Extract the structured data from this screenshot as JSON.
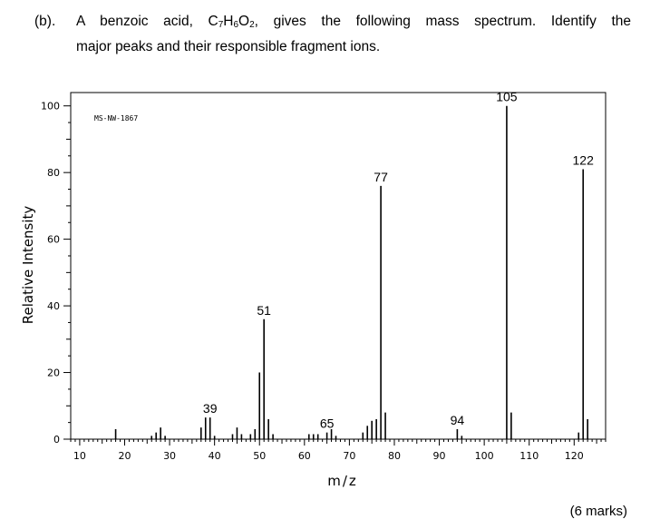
{
  "question": {
    "number": "(b).",
    "line1_prefix": "A benzoic acid, C",
    "sub1": "7",
    "h": "H",
    "sub2": "6",
    "o": "O",
    "sub3": "2",
    "line1_suffix": ", gives the following mass spectrum. Identify the",
    "line2": "major peaks and their responsible fragment ions."
  },
  "marks": "(6  marks)",
  "chart_data": {
    "type": "bar",
    "annotation": "MS-NW-1867",
    "xlabel": "m/z",
    "ylabel": "Relative Intensity",
    "xlim": [
      8,
      127
    ],
    "ylim": [
      0,
      104
    ],
    "x_ticks": [
      10,
      20,
      30,
      40,
      50,
      60,
      70,
      80,
      90,
      100,
      110,
      120
    ],
    "y_ticks": [
      0,
      20,
      40,
      60,
      80,
      100
    ],
    "peaks": [
      {
        "mz": 18,
        "intensity": 3
      },
      {
        "mz": 26,
        "intensity": 1
      },
      {
        "mz": 27,
        "intensity": 2
      },
      {
        "mz": 28,
        "intensity": 3.5
      },
      {
        "mz": 29,
        "intensity": 1
      },
      {
        "mz": 37,
        "intensity": 3.5
      },
      {
        "mz": 38,
        "intensity": 6.5
      },
      {
        "mz": 39,
        "intensity": 6.5
      },
      {
        "mz": 40,
        "intensity": 1
      },
      {
        "mz": 44,
        "intensity": 1.5
      },
      {
        "mz": 45,
        "intensity": 3.5
      },
      {
        "mz": 46,
        "intensity": 1.5
      },
      {
        "mz": 48,
        "intensity": 1.5
      },
      {
        "mz": 49,
        "intensity": 3
      },
      {
        "mz": 50,
        "intensity": 20
      },
      {
        "mz": 51,
        "intensity": 36
      },
      {
        "mz": 52,
        "intensity": 6
      },
      {
        "mz": 53,
        "intensity": 1.5
      },
      {
        "mz": 61,
        "intensity": 1.5
      },
      {
        "mz": 62,
        "intensity": 1.5
      },
      {
        "mz": 63,
        "intensity": 1.5
      },
      {
        "mz": 65,
        "intensity": 2
      },
      {
        "mz": 66,
        "intensity": 3
      },
      {
        "mz": 67,
        "intensity": 1
      },
      {
        "mz": 73,
        "intensity": 2
      },
      {
        "mz": 74,
        "intensity": 4
      },
      {
        "mz": 75,
        "intensity": 5.5
      },
      {
        "mz": 76,
        "intensity": 6
      },
      {
        "mz": 77,
        "intensity": 76
      },
      {
        "mz": 78,
        "intensity": 8
      },
      {
        "mz": 94,
        "intensity": 3
      },
      {
        "mz": 95,
        "intensity": 1
      },
      {
        "mz": 105,
        "intensity": 100
      },
      {
        "mz": 106,
        "intensity": 8
      },
      {
        "mz": 121,
        "intensity": 2
      },
      {
        "mz": 122,
        "intensity": 81
      },
      {
        "mz": 123,
        "intensity": 6
      }
    ],
    "peak_labels": [
      {
        "mz": 39,
        "text": "39",
        "y": 6.5
      },
      {
        "mz": 51,
        "text": "51",
        "y": 36
      },
      {
        "mz": 65,
        "text": "65",
        "y": 2
      },
      {
        "mz": 77,
        "text": "77",
        "y": 76
      },
      {
        "mz": 94,
        "text": "94",
        "y": 3
      },
      {
        "mz": 105,
        "text": "105",
        "y": 100
      },
      {
        "mz": 122,
        "text": "122",
        "y": 81
      }
    ]
  }
}
